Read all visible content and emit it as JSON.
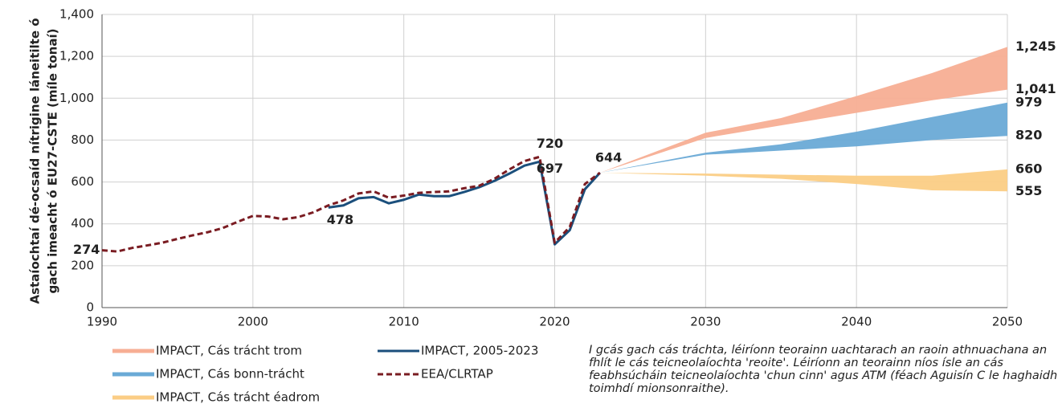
{
  "chart_data": {
    "type": "line",
    "ylabel": [
      "Astaíochtaí dé-ocsaíd nítrigine láneitilte ó",
      "gach imeacht ó EU27-CSTE (míle tonaí)"
    ],
    "xlim": [
      1990,
      2050
    ],
    "xticks": [
      1990,
      2000,
      2010,
      2020,
      2030,
      2040,
      2050
    ],
    "ylim": [
      0,
      1400
    ],
    "yticks": [
      0,
      200,
      400,
      600,
      800,
      {
        "value": 1000,
        "label": "1,000"
      },
      {
        "value": 1200,
        "label": "1,200"
      },
      {
        "value": 1400,
        "label": "1,400"
      }
    ],
    "grid": true,
    "series": [
      {
        "name": "IMPACT, Cás trácht trom",
        "kind": "band",
        "color": "#f7ae94",
        "x": [
          2023,
          2030,
          2035,
          2040,
          2045,
          2050
        ],
        "values": [
          644,
          835,
          905,
          1010,
          1120,
          1245
        ],
        "lower": [
          644,
          810,
          870,
          930,
          990,
          1041
        ]
      },
      {
        "name": "IMPACT, 2005-2023",
        "kind": "line",
        "color": "#1b4f7c",
        "x": [
          2005,
          2006,
          2007,
          2008,
          2009,
          2010,
          2011,
          2012,
          2013,
          2014,
          2015,
          2016,
          2017,
          2018,
          2019,
          2020,
          2021,
          2022,
          2023
        ],
        "values": [
          478,
          488,
          522,
          528,
          498,
          515,
          540,
          532,
          532,
          552,
          575,
          605,
          640,
          678,
          697,
          302,
          370,
          565,
          644
        ]
      },
      {
        "name": "IMPACT, Cás bonn-trácht",
        "kind": "band",
        "color": "#6aaad6",
        "x": [
          2023,
          2030,
          2035,
          2040,
          2045,
          2050
        ],
        "values": [
          644,
          740,
          780,
          840,
          910,
          979
        ],
        "lower": [
          644,
          730,
          750,
          770,
          800,
          820
        ]
      },
      {
        "name": "EEA/CLRTAP",
        "kind": "dashed",
        "color": "#7a1c22",
        "x": [
          1990,
          1991,
          1992,
          1993,
          1994,
          1995,
          1996,
          1997,
          1998,
          1999,
          2000,
          2001,
          2002,
          2003,
          2004,
          2005,
          2006,
          2007,
          2008,
          2009,
          2010,
          2011,
          2012,
          2013,
          2014,
          2015,
          2016,
          2017,
          2018,
          2019,
          2020,
          2021,
          2022,
          2023
        ],
        "values": [
          274,
          268,
          285,
          297,
          310,
          328,
          345,
          360,
          380,
          410,
          438,
          435,
          422,
          432,
          455,
          488,
          512,
          545,
          555,
          525,
          535,
          548,
          552,
          555,
          570,
          582,
          615,
          660,
          700,
          720,
          310,
          385,
          590,
          644
        ]
      },
      {
        "name": "IMPACT, Cás trácht éadrom",
        "kind": "band",
        "color": "#fbcd85",
        "x": [
          2023,
          2030,
          2035,
          2040,
          2045,
          2050
        ],
        "values": [
          644,
          640,
          635,
          630,
          630,
          660
        ],
        "lower": [
          644,
          630,
          615,
          590,
          560,
          555
        ]
      }
    ],
    "annotations": [
      {
        "x": 1990,
        "y": 274,
        "label": "274",
        "color": "#7a1c22"
      },
      {
        "x": 2005,
        "y": 478,
        "label": "478",
        "color": "#1f6aa0"
      },
      {
        "x": 2019,
        "y": 720,
        "label": "720",
        "color": "#7a1c22"
      },
      {
        "x": 2019,
        "y": 697,
        "label": "697",
        "color": "#1f6aa0"
      },
      {
        "x": 2023,
        "y": 644,
        "label": "644",
        "color": "#1f6aa0"
      },
      {
        "x": 2050,
        "y": 1245,
        "label": "1,245",
        "color": "#ef8a68"
      },
      {
        "x": 2050,
        "y": 1041,
        "label": "1,041",
        "color": "#ef8a68"
      },
      {
        "x": 2050,
        "y": 979,
        "label": "979",
        "color": "#1a8ccc"
      },
      {
        "x": 2050,
        "y": 820,
        "label": "820",
        "color": "#1a8ccc"
      },
      {
        "x": 2050,
        "y": 660,
        "label": "660",
        "color": "#c8a263"
      },
      {
        "x": 2050,
        "y": 555,
        "label": "555",
        "color": "#c8a263"
      }
    ],
    "note": "I gcás gach cás tráchta, léiríonn teorainn uachtarach an raoin athnuachana an fhlít le cás teicneolaíochta 'reoite'. Léiríonn an teorainn níos ísle an cás feabhsúcháin teicneolaíochta 'chun cinn' agus ATM (féach Aguisín C le haghaidh toimhdí mionsonraithe)."
  }
}
